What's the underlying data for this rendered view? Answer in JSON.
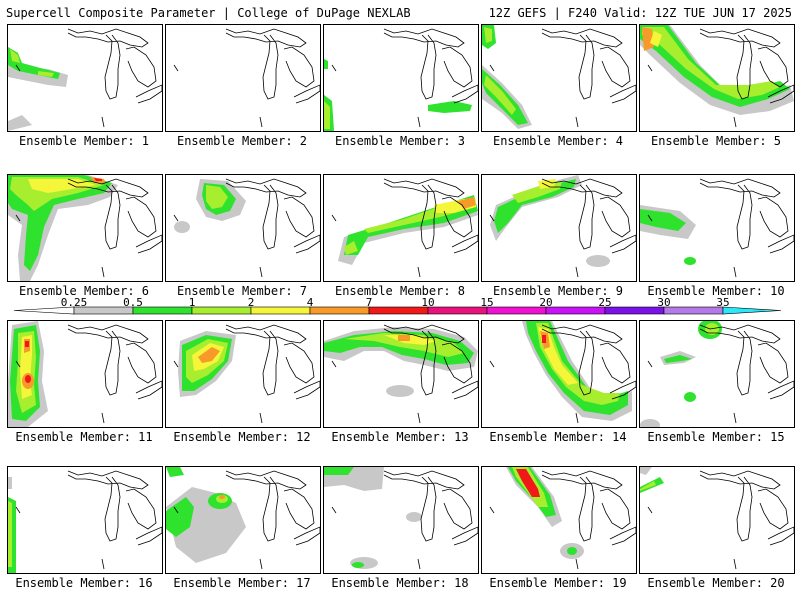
{
  "header": {
    "title": "Supercell Composite Parameter | College of DuPage NEXLAB",
    "run_info": "12Z GEFS | F240 Valid: 12Z TUE JUN 17 2025"
  },
  "colorbar": {
    "labels": [
      "0.25",
      "0.5",
      "1",
      "2",
      "4",
      "7",
      "10",
      "15",
      "20",
      "25",
      "30",
      "35"
    ],
    "colors": [
      "#c8c8c8",
      "#2ee22e",
      "#a6ee2e",
      "#f5f53a",
      "#f89a2a",
      "#f01818",
      "#e8127a",
      "#f012d2",
      "#c812f8",
      "#7a12e8",
      "#b47ae8",
      "#2ae8f8"
    ]
  },
  "members": [
    {
      "label": "Ensemble Member: 1"
    },
    {
      "label": "Ensemble Member: 2"
    },
    {
      "label": "Ensemble Member: 3"
    },
    {
      "label": "Ensemble Member: 4"
    },
    {
      "label": "Ensemble Member: 5"
    },
    {
      "label": "Ensemble Member: 6"
    },
    {
      "label": "Ensemble Member: 7"
    },
    {
      "label": "Ensemble Member: 8"
    },
    {
      "label": "Ensemble Member: 9"
    },
    {
      "label": "Ensemble Member: 10"
    },
    {
      "label": "Ensemble Member: 11"
    },
    {
      "label": "Ensemble Member: 12"
    },
    {
      "label": "Ensemble Member: 13"
    },
    {
      "label": "Ensemble Member: 14"
    },
    {
      "label": "Ensemble Member: 15"
    },
    {
      "label": "Ensemble Member: 16"
    },
    {
      "label": "Ensemble Member: 17"
    },
    {
      "label": "Ensemble Member: 18"
    },
    {
      "label": "Ensemble Member: 19"
    },
    {
      "label": "Ensemble Member: 20"
    }
  ]
}
